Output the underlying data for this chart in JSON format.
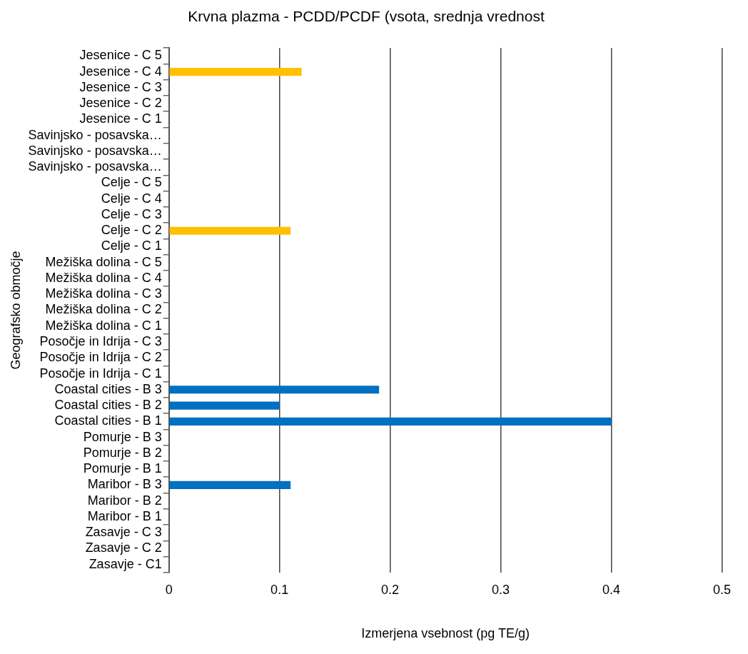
{
  "chart_data": {
    "type": "bar",
    "orientation": "horizontal",
    "title": "Krvna plazma - PCDD/PCDF (vsota, srednja vrednost",
    "xlabel": "Izmerjena vsebnost (pg TE/g)",
    "ylabel": "Geografsko območje",
    "categories": [
      "Jesenice - C 5",
      "Jesenice - C 4",
      "Jesenice - C 3",
      "Jesenice - C 2",
      "Jesenice - C 1",
      "Savinjsko - posavska…",
      "Savinjsko - posavska…",
      "Savinjsko - posavska…",
      "Celje - C 5",
      "Celje - C 4",
      "Celje - C 3",
      "Celje - C 2",
      "Celje - C 1",
      "Mežiška dolina - C 5",
      "Mežiška dolina - C 4",
      "Mežiška dolina - C 3",
      "Mežiška dolina - C 2",
      "Mežiška dolina - C 1",
      "Posočje in Idrija - C 3",
      "Posočje in Idrija - C 2",
      "Posočje in Idrija - C 1",
      "Coastal cities - B 3",
      "Coastal cities - B 2",
      "Coastal cities - B 1",
      "Pomurje - B 3",
      "Pomurje - B 2",
      "Pomurje - B 1",
      "Maribor - B 3",
      "Maribor - B 2",
      "Maribor - B 1",
      "Zasavje - C 3",
      "Zasavje - C 2",
      "Zasavje - C1"
    ],
    "values": [
      null,
      0.12,
      null,
      null,
      null,
      null,
      null,
      null,
      null,
      null,
      null,
      0.11,
      null,
      null,
      null,
      null,
      null,
      null,
      null,
      null,
      null,
      0.19,
      0.1,
      0.4,
      null,
      null,
      null,
      0.11,
      null,
      null,
      null,
      null,
      null
    ],
    "colors": [
      null,
      "#ffc000",
      null,
      null,
      null,
      null,
      null,
      null,
      null,
      null,
      null,
      "#ffc000",
      null,
      null,
      null,
      null,
      null,
      null,
      null,
      null,
      null,
      "#0070c0",
      "#0070c0",
      "#0070c0",
      null,
      null,
      null,
      "#0070c0",
      null,
      null,
      null,
      null,
      null
    ],
    "xlim": [
      0,
      0.5
    ],
    "xticks": [
      0,
      0.1,
      0.2,
      0.3,
      0.4,
      0.5
    ],
    "grid": "x"
  }
}
